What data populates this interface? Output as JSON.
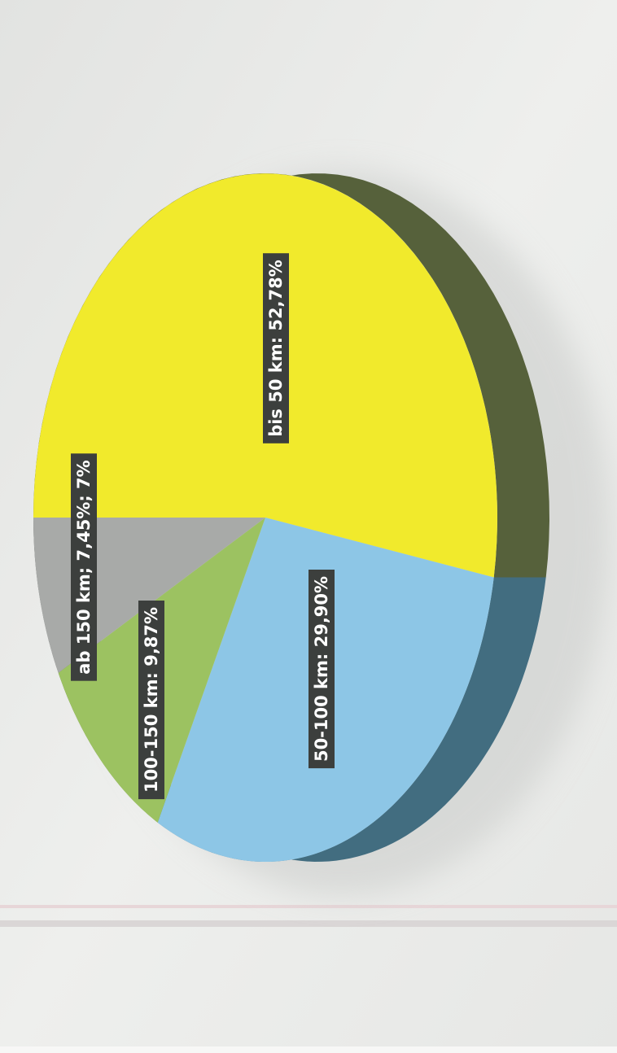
{
  "chart_data": {
    "type": "pie",
    "style": "3d",
    "orientation": "rotated-90-clockwise",
    "slices": [
      {
        "label": "bis 50 km: 52,78%",
        "category": "bis 50 km",
        "value": 52.78,
        "color": "#f1ea2c",
        "side_color": "#56613b"
      },
      {
        "label": "50-100 km: 29,90%",
        "category": "50-100 km",
        "value": 29.9,
        "color": "#8dc6e6",
        "side_color": "#426d80"
      },
      {
        "label": "100-150 km: 9,87%",
        "category": "100-150 km",
        "value": 9.87,
        "color": "#9cc261",
        "side_color": "#5f7a3c"
      },
      {
        "label": "ab 150 km; 7,45%; 7%",
        "category": "ab 150 km",
        "value": 7.45,
        "color": "#a8aaa8",
        "side_color": "#6b6d6b"
      }
    ],
    "title": "",
    "legend": "none",
    "data_labels": "inside"
  }
}
